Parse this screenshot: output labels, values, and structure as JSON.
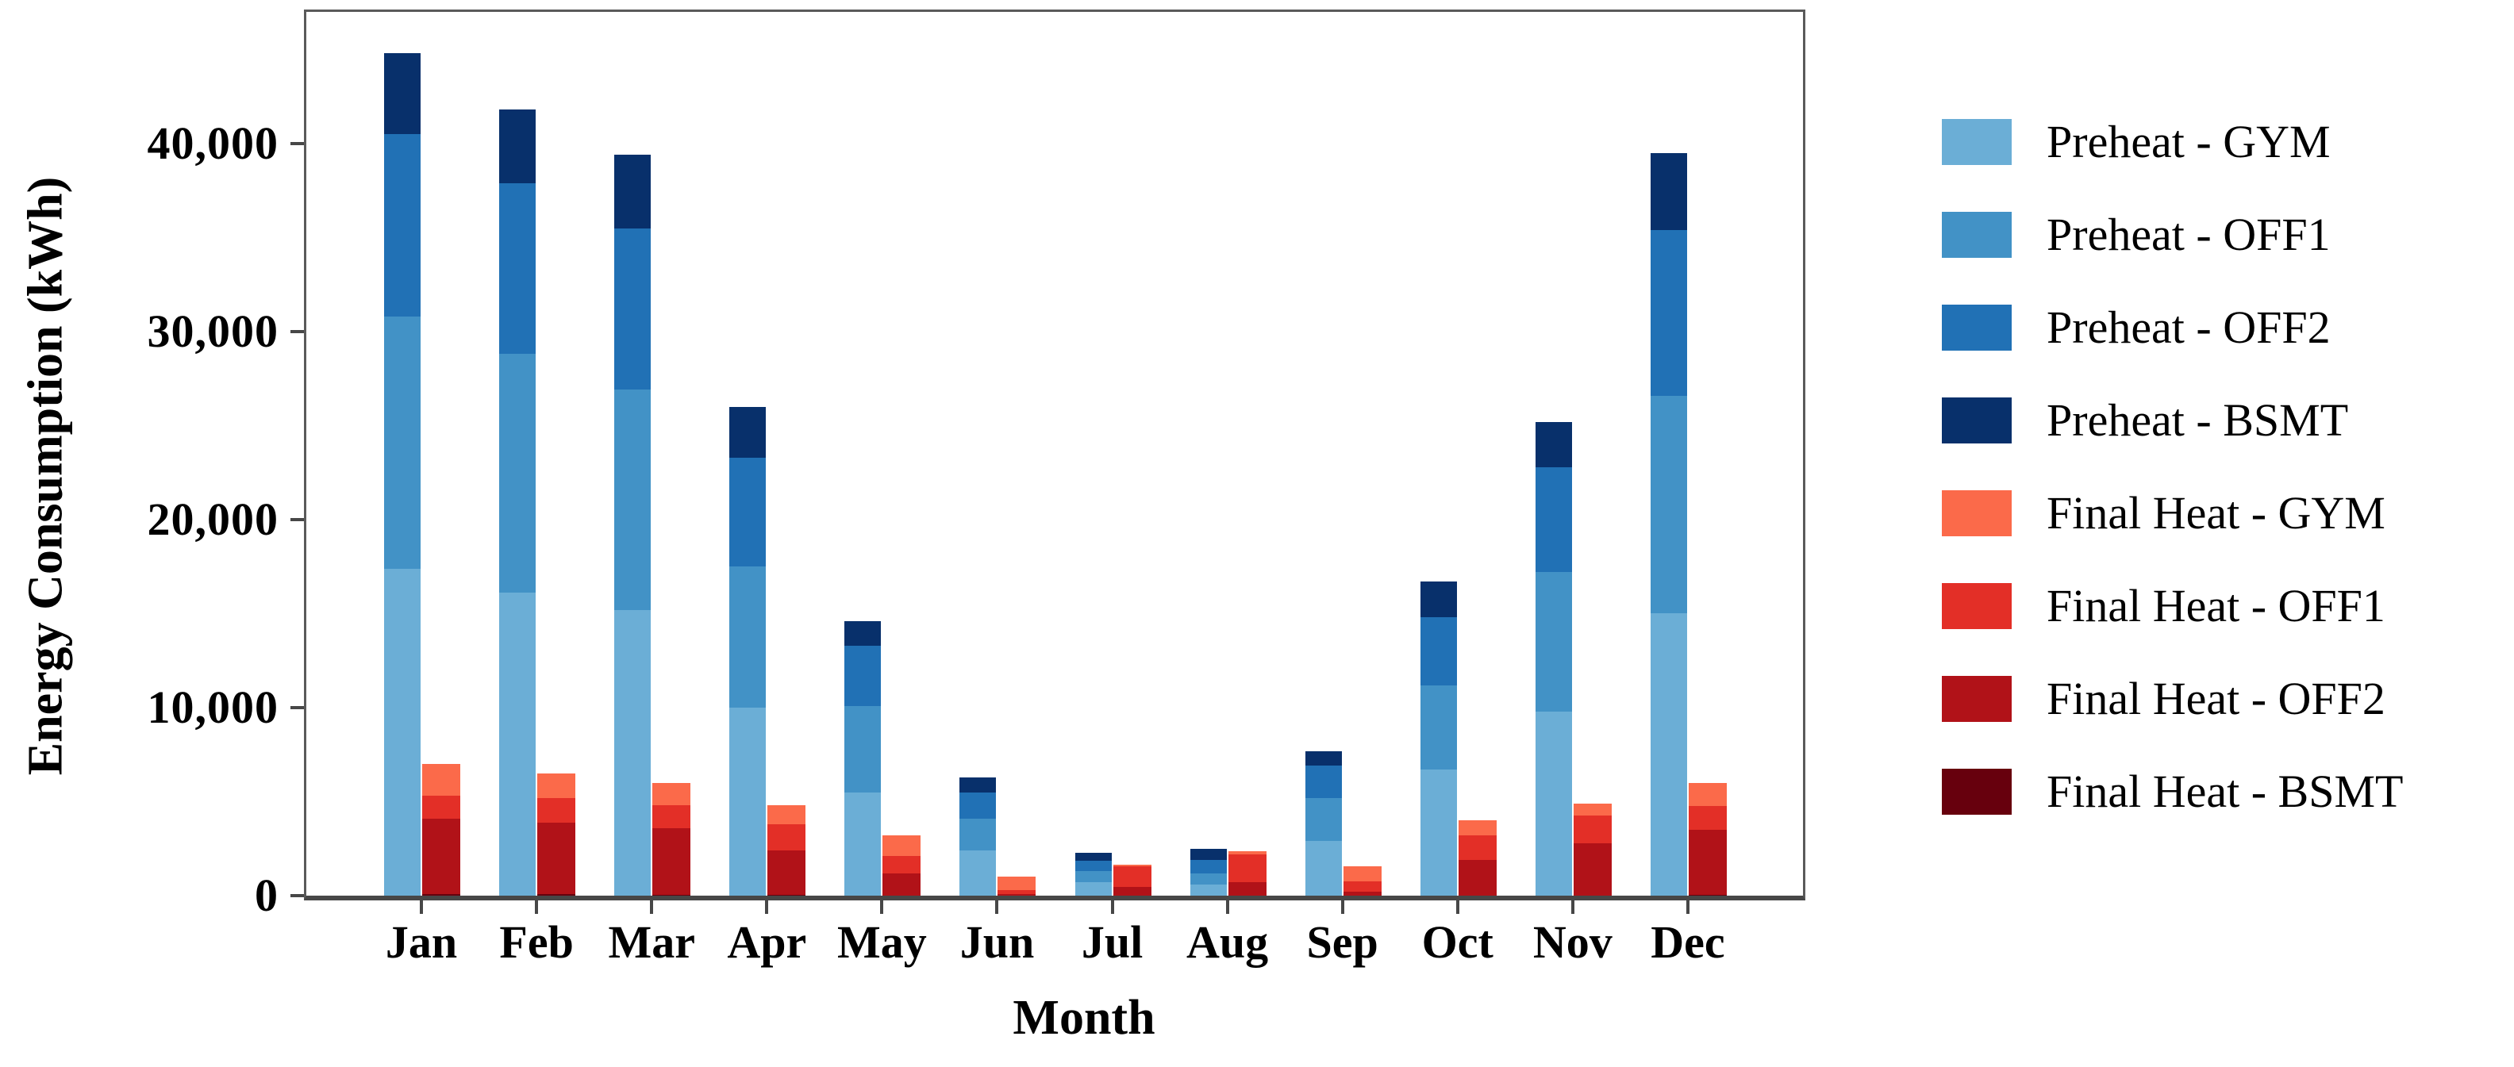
{
  "figure": {
    "y_axis_label": "Energy Consumption (kWh)",
    "x_axis_label": "Month"
  },
  "chart_data": {
    "type": "bar",
    "stacked": true,
    "title": "",
    "xlabel": "Month",
    "ylabel": "Energy Consumption (kWh)",
    "ylim": [
      0,
      47000
    ],
    "grid": false,
    "legend_position": "right",
    "categories": [
      "Jan",
      "Feb",
      "Mar",
      "Apr",
      "May",
      "Jun",
      "Jul",
      "Aug",
      "Sep",
      "Oct",
      "Nov",
      "Dec"
    ],
    "y_tick_values": [
      0,
      10000,
      20000,
      30000,
      40000
    ],
    "y_tick_labels": [
      "0",
      "10,000",
      "20,000",
      "30,000",
      "40,000"
    ],
    "series": [
      {
        "name": "Preheat - GYM",
        "color": "#6baed6",
        "values": [
          17400,
          16100,
          15200,
          10000,
          5500,
          2400,
          700,
          600,
          2900,
          6700,
          9800,
          15000
        ]
      },
      {
        "name": "Preheat - OFF1",
        "color": "#4292c6",
        "values": [
          13400,
          12700,
          11700,
          7500,
          4600,
          1700,
          600,
          600,
          2300,
          4500,
          7400,
          11600
        ]
      },
      {
        "name": "Preheat - OFF2",
        "color": "#2171b5",
        "values": [
          9700,
          9100,
          8600,
          5800,
          3200,
          1400,
          550,
          700,
          1700,
          3600,
          5600,
          8800
        ]
      },
      {
        "name": "Preheat - BSMT",
        "color": "#08306b",
        "values": [
          4300,
          3900,
          3900,
          2700,
          1300,
          800,
          450,
          600,
          800,
          1900,
          2400,
          4100
        ]
      },
      {
        "name": "Final Heat - GYM",
        "color": "#fb6a4a",
        "values": [
          1700,
          1300,
          1200,
          1000,
          1100,
          700,
          100,
          150,
          800,
          800,
          650,
          1250
        ]
      },
      {
        "name": "Final Heat - OFF1",
        "color": "#e32f27",
        "values": [
          1200,
          1300,
          1200,
          1400,
          900,
          200,
          1100,
          1500,
          550,
          1300,
          1450,
          1250
        ]
      },
      {
        "name": "Final Heat - OFF2",
        "color": "#b11218",
        "values": [
          4000,
          3800,
          3550,
          2350,
          1200,
          100,
          450,
          700,
          200,
          1900,
          2800,
          3450
        ]
      },
      {
        "name": "Final Heat - BSMT",
        "color": "#67000d",
        "values": [
          100,
          100,
          50,
          50,
          0,
          0,
          0,
          0,
          0,
          0,
          0,
          50
        ]
      }
    ],
    "stack_groups": {
      "preheat_bottom_to_top": [
        "Preheat - GYM",
        "Preheat - OFF1",
        "Preheat - OFF2",
        "Preheat - BSMT"
      ],
      "final_heat_bottom_to_top": [
        "Final Heat - BSMT",
        "Final Heat - OFF2",
        "Final Heat - OFF1",
        "Final Heat - GYM"
      ]
    }
  }
}
